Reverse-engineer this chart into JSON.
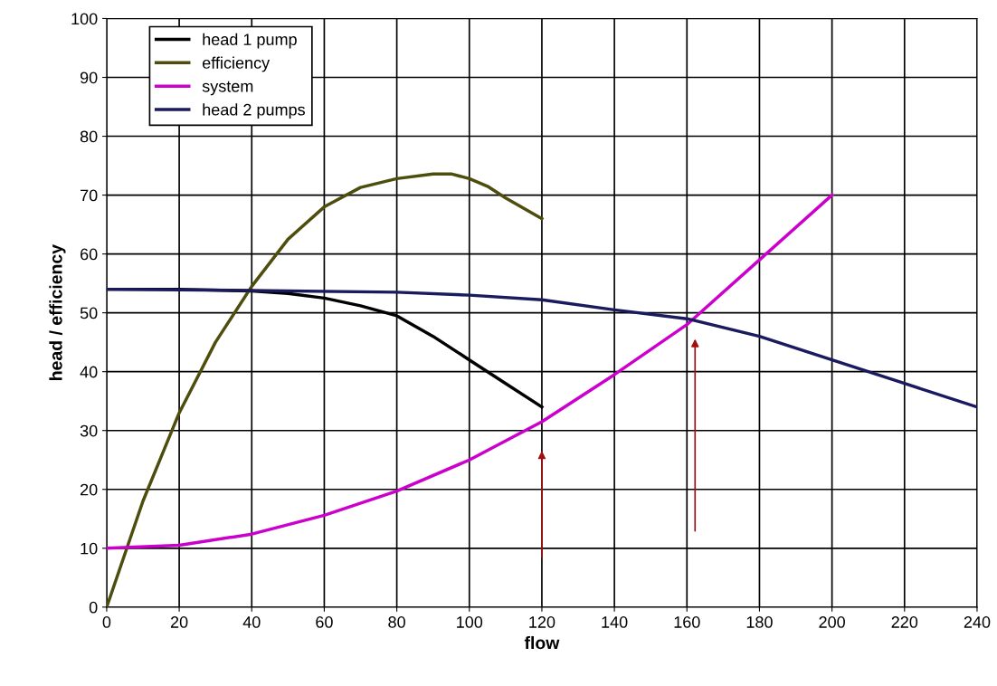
{
  "chart_data": {
    "type": "line",
    "xlabel": "flow",
    "ylabel": "head / efficiency",
    "xlim": [
      0,
      240
    ],
    "xticks": [
      0,
      20,
      40,
      60,
      80,
      100,
      120,
      140,
      160,
      180,
      200,
      220,
      240
    ],
    "ylim": [
      0,
      100
    ],
    "yticks": [
      0,
      10,
      20,
      30,
      40,
      50,
      60,
      70,
      80,
      90,
      100
    ],
    "grid": true,
    "legend": "top left",
    "marker": "none",
    "line_style": "solid",
    "series": [
      {
        "name": "head 1 pump",
        "color": "#000000",
        "x": [
          0,
          20,
          40,
          50,
          60,
          70,
          80,
          90,
          100,
          110,
          120
        ],
        "values": [
          54,
          54,
          53.7,
          53.3,
          52.5,
          51.2,
          49.5,
          46,
          42,
          38,
          34
        ]
      },
      {
        "name": "efficiency",
        "color": "#4d4d0d",
        "x": [
          0,
          10,
          20,
          30,
          40,
          50,
          60,
          70,
          80,
          90,
          95,
          100,
          105,
          110,
          120
        ],
        "values": [
          0,
          18,
          33,
          45,
          54.5,
          62.5,
          68,
          71.3,
          72.8,
          73.6,
          73.6,
          72.8,
          71.5,
          69.5,
          66
        ]
      },
      {
        "name": "system",
        "color": "#cc00cc",
        "x": [
          0,
          20,
          40,
          60,
          80,
          100,
          120,
          140,
          160,
          180,
          200
        ],
        "values": [
          10,
          10.5,
          12.4,
          15.6,
          19.7,
          25,
          31.5,
          39.5,
          48,
          59,
          70
        ]
      },
      {
        "name": "head 2 pumps",
        "color": "#1a1a5e",
        "x": [
          0,
          40,
          80,
          100,
          120,
          140,
          160,
          180,
          200,
          220,
          240
        ],
        "values": [
          54,
          53.8,
          53.5,
          53,
          52.2,
          50.5,
          49,
          46,
          42,
          38,
          34
        ]
      }
    ]
  }
}
